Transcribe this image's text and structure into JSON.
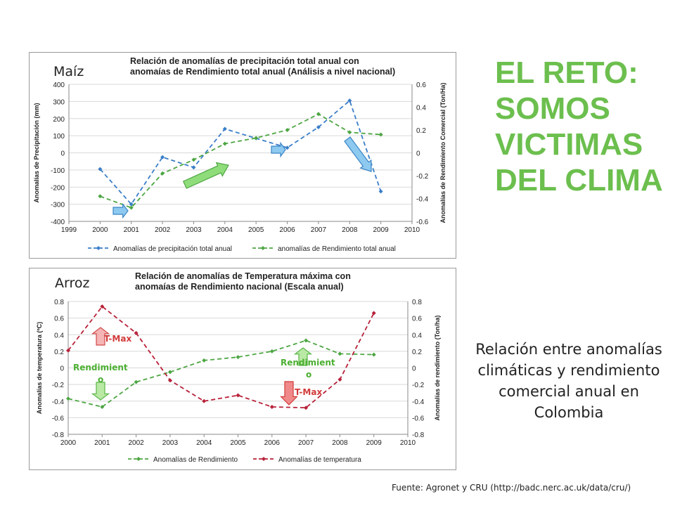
{
  "headline": [
    "EL RETO:",
    "SOMOS",
    "VICTIMAS",
    "DEL CLIMA"
  ],
  "description": "Relación entre anomalías climáticas y rendimiento comercial anual en Colombia",
  "source": "Fuente:   Agronet y CRU  (http://badc.nerc.ac.uk/data/cru/)",
  "colors": {
    "headline": "#6cbf4e",
    "blue_series": "#3a7ec9",
    "green_series": "#4da643",
    "red_series": "#b8223a"
  },
  "chart_data": [
    {
      "type": "line",
      "crop_label": "Maíz",
      "title": [
        "Relación de anomalías de precipitación total anual con",
        "anomaías de Rendimiento total anual (Análisis a nivel nacional)"
      ],
      "ylabel_left": "Anomalías de Precipitación (mm)",
      "ylabel_right": "Anomalías de  Rendimiento Comercial (Ton/Ha)",
      "x_ticks": [
        1999,
        2000,
        2001,
        2002,
        2003,
        2004,
        2005,
        2006,
        2007,
        2008,
        2009,
        2010
      ],
      "y_left_ticks": [
        -400,
        -300,
        -200,
        -100,
        0,
        100,
        200,
        300,
        400
      ],
      "y_right_ticks": [
        -0.6,
        -0.4,
        -0.2,
        0,
        0.2,
        0.4,
        0.6
      ],
      "y_left_range": [
        -400,
        400
      ],
      "y_right_range": [
        -0.6,
        0.6
      ],
      "series": [
        {
          "name": "Anomalías de precipitación total anual",
          "axis": "left",
          "color": "#3a7ec9",
          "x": [
            2000,
            2001,
            2002,
            2003,
            2004,
            2005,
            2006,
            2007,
            2008,
            2009
          ],
          "values": [
            -95,
            -300,
            -25,
            -85,
            140,
            85,
            30,
            150,
            305,
            -225
          ]
        },
        {
          "name": "anomalías de Rendimiento total anual",
          "axis": "right",
          "color": "#4da643",
          "x": [
            2000,
            2001,
            2002,
            2003,
            2004,
            2005,
            2006,
            2007,
            2008,
            2009
          ],
          "values": [
            -0.38,
            -0.48,
            -0.18,
            -0.06,
            0.08,
            0.13,
            0.2,
            0.34,
            0.18,
            0.16
          ]
        }
      ],
      "legend_position": "bottom"
    },
    {
      "type": "line",
      "crop_label": "Arroz",
      "title": [
        "Relación de anomalías de Temperatura máxima con",
        "anomaías de Rendimiento nacional  (Escala anual)"
      ],
      "ylabel_left": "Anomalías de temperatura (ºC)",
      "ylabel_right": "Anomalías de rendimiento (Ton/ha)",
      "x_ticks": [
        2000,
        2001,
        2002,
        2003,
        2004,
        2005,
        2006,
        2007,
        2008,
        2009,
        2010
      ],
      "y_left_ticks": [
        -0.8,
        -0.6,
        -0.4,
        -0.2,
        0,
        0.2,
        0.4,
        0.6,
        0.8
      ],
      "y_right_ticks": [
        -0.8,
        -0.6,
        -0.4,
        -0.2,
        0,
        0.2,
        0.4,
        0.6,
        0.8
      ],
      "y_left_range": [
        -0.8,
        0.8
      ],
      "y_right_range": [
        -0.8,
        0.8
      ],
      "series": [
        {
          "name": "Anomalías de Rendimiento",
          "axis": "right",
          "color": "#4da643",
          "x": [
            2000,
            2001,
            2002,
            2003,
            2004,
            2005,
            2006,
            2007,
            2008,
            2009
          ],
          "values": [
            -0.37,
            -0.47,
            -0.17,
            -0.05,
            0.09,
            0.13,
            0.2,
            0.33,
            0.17,
            0.16
          ]
        },
        {
          "name": "Anomalías de temperatura",
          "axis": "left",
          "color": "#b8223a",
          "x": [
            2000,
            2001,
            2002,
            2003,
            2004,
            2005,
            2006,
            2007,
            2008,
            2009
          ],
          "values": [
            0.21,
            0.74,
            0.42,
            -0.15,
            -0.4,
            -0.33,
            -0.47,
            -0.48,
            -0.14,
            0.66
          ]
        }
      ],
      "annotations": {
        "tmax_1": "T-Max",
        "rend_1": "Rendimient",
        "rend_1b": "o",
        "rend_2": "Rendimient",
        "rend_2b": "o",
        "tmax_2": "T-Max"
      },
      "legend_position": "bottom"
    }
  ]
}
